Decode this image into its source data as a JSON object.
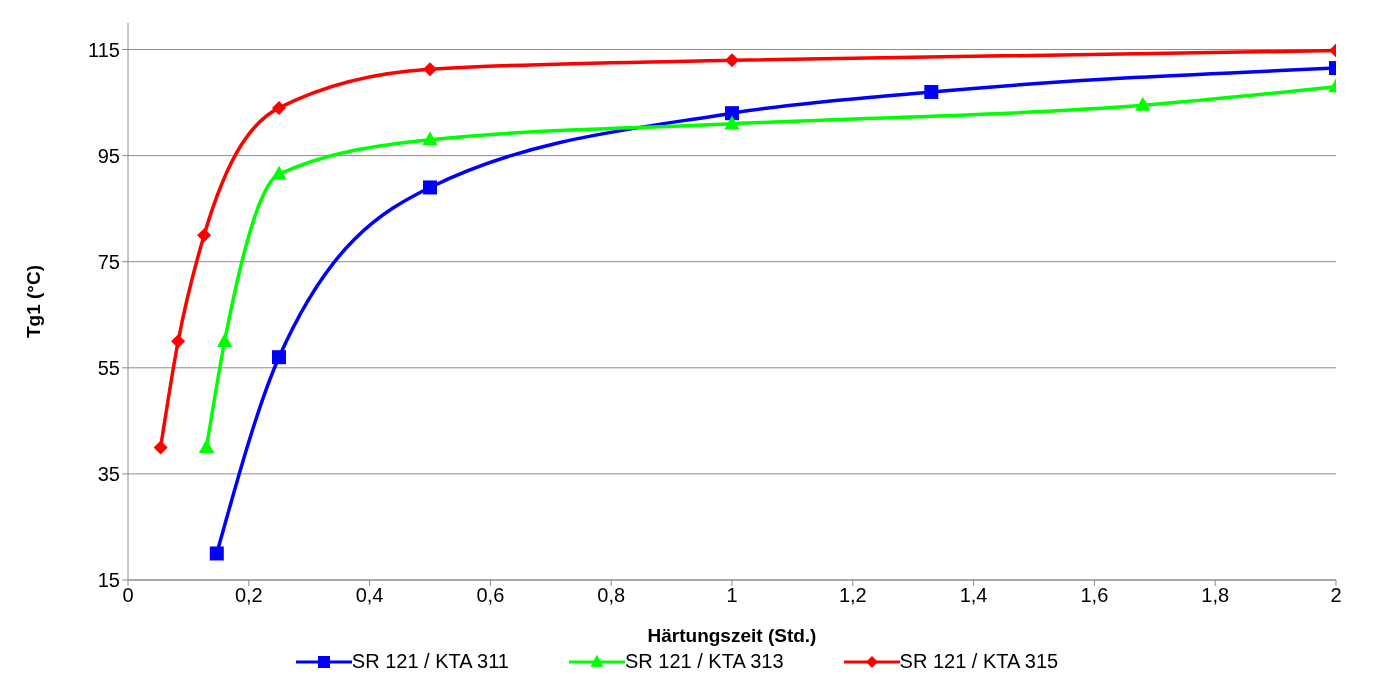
{
  "chart_data": {
    "type": "line",
    "xlabel": "Härtungszeit (Std.)",
    "ylabel": "Tg1 (°C)",
    "xlim": [
      0,
      2
    ],
    "xticks": [
      {
        "value": 0,
        "label": "0"
      },
      {
        "value": 0.2,
        "label": "0,2"
      },
      {
        "value": 0.4,
        "label": "0,4"
      },
      {
        "value": 0.6,
        "label": "0,6"
      },
      {
        "value": 0.8,
        "label": "0,8"
      },
      {
        "value": 1,
        "label": "1"
      },
      {
        "value": 1.2,
        "label": "1,2"
      },
      {
        "value": 1.4,
        "label": "1,4"
      },
      {
        "value": 1.6,
        "label": "1,6"
      },
      {
        "value": 1.8,
        "label": "1,8"
      },
      {
        "value": 2,
        "label": "2"
      }
    ],
    "ylim": [
      15,
      120
    ],
    "yticks": [
      15,
      35,
      55,
      75,
      95,
      115
    ],
    "grid": "y",
    "legend": "bottom",
    "line_style": "solid",
    "series": [
      {
        "name": "SR 121 / KTA 311",
        "color": "#0000ff",
        "marker": "square",
        "x": [
          0.147,
          0.25,
          0.5,
          1,
          1.33,
          2
        ],
        "values": [
          20,
          57,
          89,
          103,
          107,
          111.5
        ]
      },
      {
        "name": "SR 121 / KTA 313",
        "color": "#00ff00",
        "marker": "triangle",
        "x": [
          0.13,
          0.16,
          0.25,
          0.5,
          1,
          1.68,
          2
        ],
        "values": [
          40,
          60,
          91.5,
          98,
          101,
          104.5,
          108
        ]
      },
      {
        "name": "SR 121 / KTA 315",
        "color": "#ff0000",
        "marker": "diamond",
        "x": [
          0.054,
          0.083,
          0.126,
          0.25,
          0.5,
          1,
          2
        ],
        "values": [
          40,
          60,
          80,
          104,
          111.3,
          113,
          114.8
        ]
      }
    ]
  }
}
